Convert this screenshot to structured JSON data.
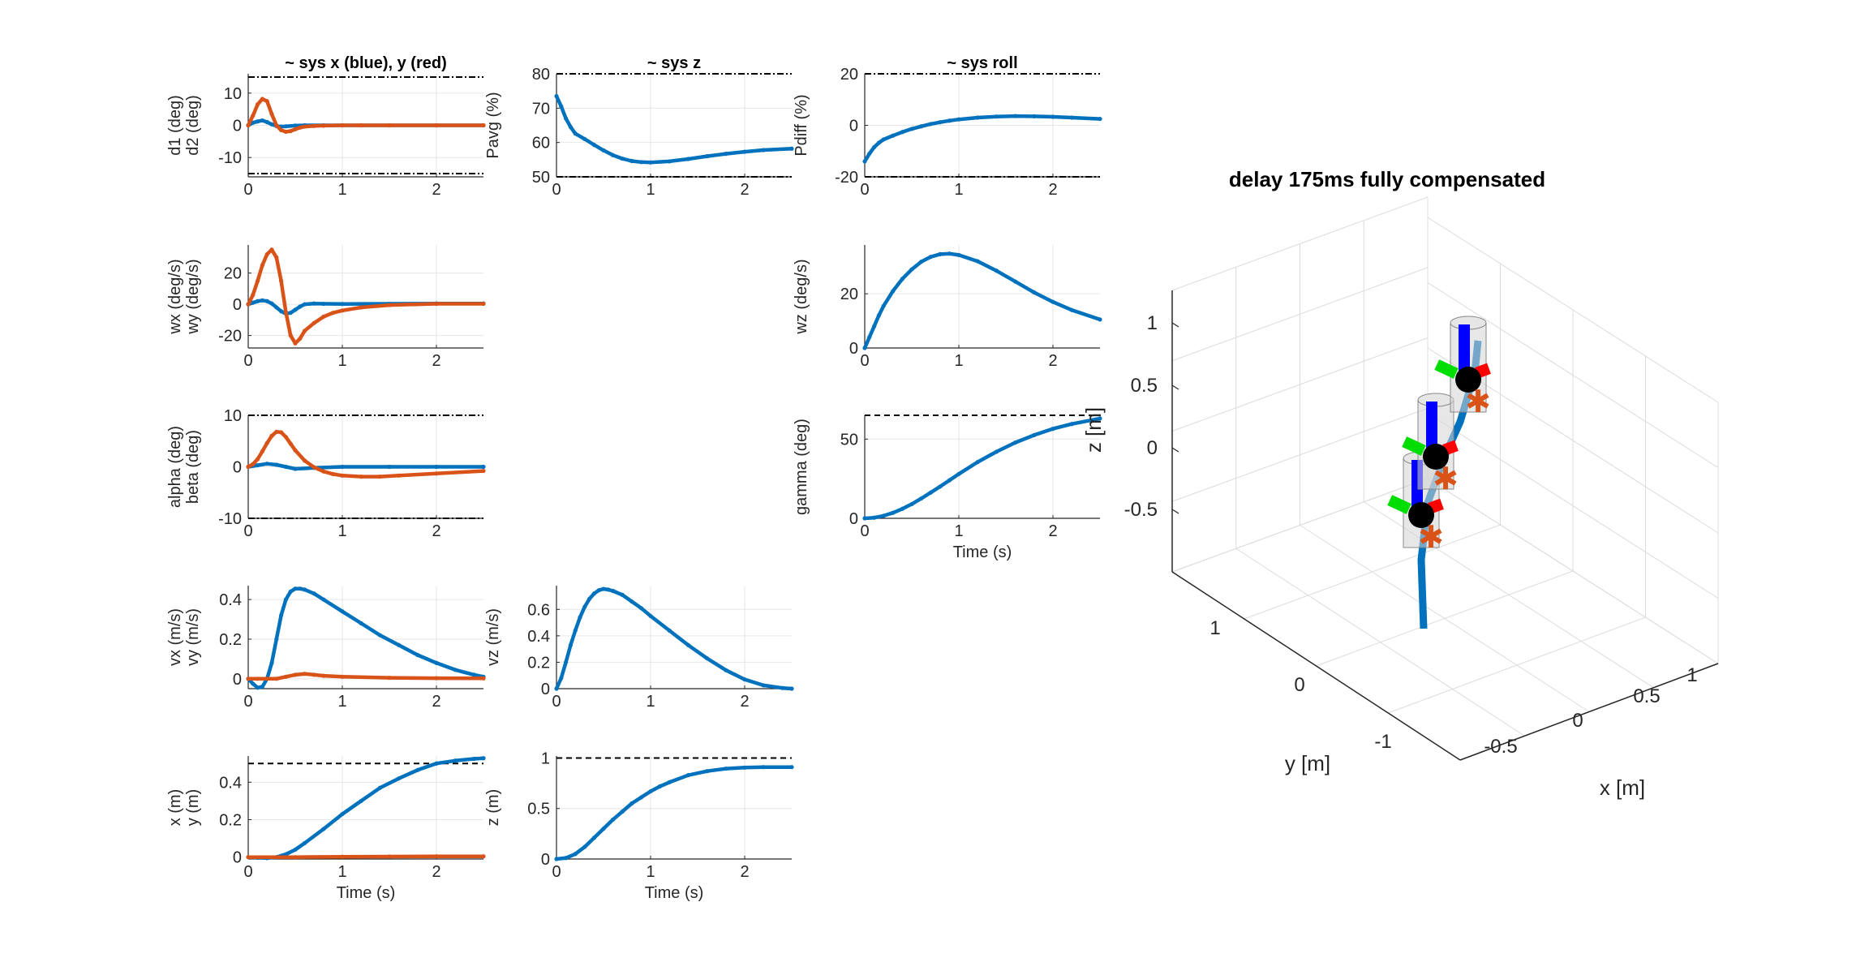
{
  "figure": {
    "title": "delay 175ms fully compensated"
  },
  "colors": {
    "blue": "#0072BD",
    "red": "#D95319",
    "axis": "#262626",
    "grid": "#e6e6e6",
    "limit": "#000000"
  },
  "chart_data": [
    {
      "id": "sys-xy-angles",
      "type": "line",
      "title": "~ sys x (blue), y (red)",
      "xlabel": "",
      "ylabel": [
        "d1 (deg)",
        "d2 (deg)"
      ],
      "xlim": [
        0,
        2.5
      ],
      "ylim": [
        -16,
        16
      ],
      "xticks": [
        "0",
        "1",
        "2"
      ],
      "yticks": [
        -10,
        0,
        10
      ],
      "limits": [
        15,
        -15
      ],
      "limit_style": "dashdot",
      "grid": true,
      "series": [
        {
          "color": "blue",
          "x": [
            0,
            0.05,
            0.1,
            0.15,
            0.2,
            0.25,
            0.3,
            0.35,
            0.4,
            0.5,
            0.6,
            0.8,
            1,
            1.5,
            2,
            2.5
          ],
          "y": [
            0,
            0.8,
            1.2,
            1.5,
            1.0,
            0.3,
            -0.2,
            -0.4,
            -0.3,
            -0.1,
            0,
            0,
            0,
            0,
            0,
            0
          ]
        },
        {
          "color": "red",
          "x": [
            0,
            0.05,
            0.1,
            0.15,
            0.2,
            0.25,
            0.3,
            0.35,
            0.4,
            0.45,
            0.5,
            0.55,
            0.6,
            0.7,
            0.8,
            1,
            1.2,
            1.5,
            2,
            2.5
          ],
          "y": [
            0,
            3,
            6.5,
            8.2,
            7.5,
            3.5,
            0,
            -1.5,
            -2,
            -1.8,
            -1.2,
            -0.7,
            -0.4,
            -0.2,
            -0.1,
            0,
            0,
            0,
            0,
            0
          ]
        }
      ]
    },
    {
      "id": "sys-z-pavg",
      "type": "line",
      "title": "~ sys z",
      "xlabel": "",
      "ylabel": [
        "Pavg (%)"
      ],
      "xlim": [
        0,
        2.5
      ],
      "ylim": [
        50,
        80
      ],
      "xticks": [
        "0",
        "1",
        "2"
      ],
      "yticks": [
        50,
        60,
        70,
        80
      ],
      "limits": [
        80,
        50
      ],
      "limit_style": "dashdot",
      "grid": true,
      "series": [
        {
          "color": "blue",
          "x": [
            0,
            0.05,
            0.1,
            0.15,
            0.2,
            0.3,
            0.4,
            0.5,
            0.6,
            0.7,
            0.8,
            0.9,
            1,
            1.2,
            1.4,
            1.6,
            1.8,
            2,
            2.2,
            2.5
          ],
          "y": [
            73.5,
            70.5,
            67,
            64.5,
            62.6,
            61,
            59.3,
            57.7,
            56.3,
            55.3,
            54.6,
            54.3,
            54.2,
            54.5,
            55.2,
            56,
            56.7,
            57.3,
            57.8,
            58.2
          ]
        }
      ]
    },
    {
      "id": "sys-roll-pdiff",
      "type": "line",
      "title": "~ sys roll",
      "xlabel": "",
      "ylabel": [
        "Pdiff (%)"
      ],
      "xlim": [
        0,
        2.5
      ],
      "ylim": [
        -20,
        20
      ],
      "xticks": [
        "0",
        "1",
        "2"
      ],
      "yticks": [
        -20,
        0,
        20
      ],
      "limits": [
        20,
        -20
      ],
      "limit_style": "dashdot",
      "grid": true,
      "series": [
        {
          "color": "blue",
          "x": [
            0,
            0.05,
            0.1,
            0.15,
            0.2,
            0.3,
            0.4,
            0.5,
            0.6,
            0.7,
            0.8,
            0.9,
            1,
            1.2,
            1.4,
            1.6,
            1.8,
            2,
            2.2,
            2.5
          ],
          "y": [
            -14,
            -11,
            -8.5,
            -6.8,
            -5.5,
            -4,
            -2.6,
            -1.4,
            -0.4,
            0.5,
            1.2,
            1.8,
            2.3,
            3,
            3.4,
            3.6,
            3.5,
            3.3,
            3,
            2.5
          ]
        }
      ]
    },
    {
      "id": "sys-xy-rates",
      "type": "line",
      "title": "",
      "xlabel": "",
      "ylabel": [
        "wx (deg/s)",
        "wy (deg/s)"
      ],
      "xlim": [
        0,
        2.5
      ],
      "ylim": [
        -28,
        38
      ],
      "xticks": [
        "0",
        "1",
        "2"
      ],
      "yticks": [
        -20,
        0,
        20
      ],
      "limits": [],
      "limit_style": "none",
      "grid": true,
      "series": [
        {
          "color": "blue",
          "x": [
            0,
            0.05,
            0.1,
            0.15,
            0.2,
            0.25,
            0.3,
            0.35,
            0.4,
            0.45,
            0.5,
            0.55,
            0.6,
            0.7,
            0.8,
            1,
            1.5,
            2,
            2.5
          ],
          "y": [
            0,
            1,
            2,
            2.5,
            2,
            0.5,
            -2,
            -4.5,
            -6,
            -5.5,
            -3.5,
            -1.5,
            0,
            0.5,
            0.3,
            0.2,
            0.3,
            0.5,
            0.5
          ]
        },
        {
          "color": "red",
          "x": [
            0,
            0.05,
            0.1,
            0.15,
            0.2,
            0.25,
            0.3,
            0.35,
            0.4,
            0.45,
            0.5,
            0.55,
            0.6,
            0.7,
            0.8,
            0.9,
            1,
            1.2,
            1.5,
            2,
            2.5
          ],
          "y": [
            0,
            6,
            15,
            25,
            32,
            35,
            30,
            15,
            -5,
            -20,
            -25,
            -22,
            -17,
            -12,
            -8,
            -5.5,
            -4,
            -2,
            -0.5,
            0.3,
            0.3
          ]
        }
      ]
    },
    {
      "id": "sys-roll-wz",
      "type": "line",
      "title": "",
      "xlabel": "",
      "ylabel": [
        "wz (deg/s)"
      ],
      "xlim": [
        0,
        2.5
      ],
      "ylim": [
        0,
        38
      ],
      "xticks": [
        "0",
        "1",
        "2"
      ],
      "yticks": [
        0,
        20
      ],
      "limits": [],
      "limit_style": "none",
      "grid": true,
      "series": [
        {
          "color": "blue",
          "x": [
            0,
            0.05,
            0.1,
            0.15,
            0.2,
            0.3,
            0.4,
            0.5,
            0.6,
            0.7,
            0.8,
            0.9,
            1,
            1.2,
            1.4,
            1.6,
            1.8,
            2,
            2.2,
            2.5
          ],
          "y": [
            0,
            4,
            8,
            12,
            15.5,
            21,
            25.5,
            29,
            31.8,
            33.6,
            34.6,
            34.8,
            34.3,
            32,
            28.5,
            24.5,
            20.5,
            17,
            14,
            10.5
          ]
        }
      ]
    },
    {
      "id": "sys-xy-attitude",
      "type": "line",
      "title": "",
      "xlabel": "",
      "ylabel": [
        "alpha (deg)",
        "beta (deg)"
      ],
      "xlim": [
        0,
        2.5
      ],
      "ylim": [
        -10,
        10
      ],
      "xticks": [
        "0",
        "1",
        "2"
      ],
      "yticks": [
        -10,
        0,
        10
      ],
      "limits": [
        10,
        -10
      ],
      "limit_style": "dashdot",
      "grid": true,
      "series": [
        {
          "color": "blue",
          "x": [
            0,
            0.1,
            0.2,
            0.3,
            0.4,
            0.5,
            0.7,
            1,
            1.5,
            2,
            2.5
          ],
          "y": [
            0,
            0.3,
            0.6,
            0.4,
            0,
            -0.4,
            -0.2,
            0,
            0,
            0,
            0
          ]
        },
        {
          "color": "red",
          "x": [
            0,
            0.05,
            0.1,
            0.15,
            0.2,
            0.25,
            0.3,
            0.35,
            0.4,
            0.45,
            0.5,
            0.6,
            0.7,
            0.8,
            0.9,
            1,
            1.2,
            1.4,
            1.6,
            2,
            2.5
          ],
          "y": [
            0,
            0.5,
            1.5,
            3,
            4.6,
            6,
            6.8,
            6.7,
            5.8,
            4.5,
            3.2,
            1.2,
            -0.1,
            -0.9,
            -1.4,
            -1.7,
            -1.9,
            -1.9,
            -1.7,
            -1.3,
            -0.8
          ]
        }
      ]
    },
    {
      "id": "sys-roll-gamma",
      "type": "line",
      "title": "",
      "xlabel": "Time (s)",
      "ylabel": [
        "gamma (deg)"
      ],
      "xlim": [
        0,
        2.5
      ],
      "ylim": [
        0,
        65
      ],
      "xticks": [
        "0",
        "1",
        "2"
      ],
      "yticks": [
        0,
        50
      ],
      "limits": [
        65
      ],
      "limit_style": "dashed",
      "grid": true,
      "series": [
        {
          "color": "blue",
          "x": [
            0,
            0.1,
            0.2,
            0.3,
            0.4,
            0.5,
            0.6,
            0.7,
            0.8,
            0.9,
            1,
            1.2,
            1.4,
            1.6,
            1.8,
            2,
            2.2,
            2.5
          ],
          "y": [
            0,
            0.4,
            1.6,
            3.5,
            6,
            9,
            12.5,
            16.2,
            20,
            24,
            28,
            35.5,
            42,
            47.8,
            52.5,
            56.5,
            59.5,
            63
          ]
        }
      ]
    },
    {
      "id": "sys-xy-velocity",
      "type": "line",
      "title": "",
      "xlabel": "",
      "ylabel": [
        "vx (m/s)",
        "vy (m/s)"
      ],
      "xlim": [
        0,
        2.5
      ],
      "ylim": [
        -0.05,
        0.47
      ],
      "xticks": [
        "0",
        "1",
        "2"
      ],
      "yticks": [
        0,
        0.2,
        0.4
      ],
      "limits": [],
      "limit_style": "none",
      "grid": true,
      "series": [
        {
          "color": "blue",
          "x": [
            0,
            0.05,
            0.1,
            0.15,
            0.2,
            0.25,
            0.3,
            0.35,
            0.4,
            0.45,
            0.5,
            0.55,
            0.6,
            0.7,
            0.8,
            1,
            1.2,
            1.4,
            1.6,
            1.8,
            2,
            2.2,
            2.4,
            2.5
          ],
          "y": [
            0,
            -0.025,
            -0.045,
            -0.04,
            0,
            0.08,
            0.2,
            0.32,
            0.4,
            0.44,
            0.455,
            0.455,
            0.45,
            0.43,
            0.4,
            0.34,
            0.28,
            0.22,
            0.17,
            0.12,
            0.08,
            0.045,
            0.02,
            0.01
          ]
        },
        {
          "color": "red",
          "x": [
            0,
            0.1,
            0.2,
            0.3,
            0.4,
            0.5,
            0.6,
            0.7,
            0.8,
            1,
            1.5,
            2,
            2.5
          ],
          "y": [
            0,
            0,
            0,
            0,
            0.01,
            0.02,
            0.025,
            0.02,
            0.015,
            0.01,
            0.005,
            0.003,
            0.002
          ]
        }
      ]
    },
    {
      "id": "sys-z-velocity",
      "type": "line",
      "title": "",
      "xlabel": "",
      "ylabel": [
        "vz (m/s)"
      ],
      "xlim": [
        0,
        2.5
      ],
      "ylim": [
        0,
        0.78
      ],
      "xticks": [
        "0",
        "1",
        "2"
      ],
      "yticks": [
        0,
        0.2,
        0.4,
        0.6
      ],
      "limits": [],
      "limit_style": "none",
      "grid": true,
      "series": [
        {
          "color": "blue",
          "x": [
            0,
            0.05,
            0.1,
            0.15,
            0.2,
            0.25,
            0.3,
            0.35,
            0.4,
            0.45,
            0.5,
            0.55,
            0.6,
            0.7,
            0.8,
            0.9,
            1,
            1.2,
            1.4,
            1.6,
            1.8,
            2,
            2.2,
            2.4,
            2.5
          ],
          "y": [
            0,
            0.08,
            0.2,
            0.33,
            0.44,
            0.54,
            0.62,
            0.68,
            0.72,
            0.745,
            0.755,
            0.75,
            0.74,
            0.71,
            0.66,
            0.61,
            0.55,
            0.44,
            0.33,
            0.23,
            0.14,
            0.07,
            0.025,
            0.005,
            0
          ]
        }
      ]
    },
    {
      "id": "sys-xy-position",
      "type": "line",
      "title": "",
      "xlabel": "Time (s)",
      "ylabel": [
        "x (m)",
        "y (m)"
      ],
      "xlim": [
        0,
        2.5
      ],
      "ylim": [
        -0.01,
        0.54
      ],
      "xticks": [
        "0",
        "1",
        "2"
      ],
      "yticks": [
        0,
        0.2,
        0.4
      ],
      "limits": [
        0.5,
        0
      ],
      "limit_style": "dashed",
      "grid": true,
      "series": [
        {
          "color": "blue",
          "x": [
            0,
            0.1,
            0.2,
            0.3,
            0.4,
            0.5,
            0.6,
            0.8,
            1,
            1.2,
            1.4,
            1.6,
            1.8,
            2,
            2.2,
            2.4,
            2.5
          ],
          "y": [
            0,
            -0.003,
            -0.005,
            0,
            0.015,
            0.04,
            0.075,
            0.15,
            0.23,
            0.3,
            0.37,
            0.42,
            0.465,
            0.5,
            0.515,
            0.525,
            0.528
          ]
        },
        {
          "color": "red",
          "x": [
            0,
            0.5,
            1,
            1.5,
            2,
            2.5
          ],
          "y": [
            0,
            0,
            0.002,
            0.003,
            0.004,
            0.004
          ]
        }
      ]
    },
    {
      "id": "sys-z-position",
      "type": "line",
      "title": "",
      "xlabel": "Time (s)",
      "ylabel": [
        "z (m)"
      ],
      "xlim": [
        0,
        2.5
      ],
      "ylim": [
        0,
        1.02
      ],
      "xticks": [
        "0",
        "1",
        "2"
      ],
      "yticks": [
        0,
        0.5,
        1
      ],
      "limits": [
        1
      ],
      "limit_style": "dashed",
      "grid": true,
      "series": [
        {
          "color": "blue",
          "x": [
            0,
            0.1,
            0.2,
            0.3,
            0.4,
            0.5,
            0.6,
            0.7,
            0.8,
            0.9,
            1,
            1.1,
            1.2,
            1.4,
            1.6,
            1.8,
            2,
            2.2,
            2.5
          ],
          "y": [
            0,
            0.01,
            0.05,
            0.12,
            0.21,
            0.3,
            0.39,
            0.47,
            0.55,
            0.61,
            0.67,
            0.72,
            0.76,
            0.83,
            0.87,
            0.895,
            0.905,
            0.91,
            0.91
          ]
        }
      ]
    },
    {
      "id": "scene-3d",
      "type": "scatter",
      "title": "delay 175ms fully compensated",
      "xlabel": "x [m]",
      "ylabel": "y [m]",
      "zlabel": "z [m]",
      "xlim": [
        -0.75,
        1.25
      ],
      "ylim": [
        -1.5,
        1.5
      ],
      "zlim": [
        -1,
        1.2
      ],
      "xticks": [
        "-0.5",
        "0",
        "0.5",
        "1"
      ],
      "yticks": [
        "-1",
        "0",
        "1"
      ],
      "zticks": [
        "-0.5",
        "0",
        "0.5",
        "1"
      ],
      "grid": true,
      "vehicle_poses": [
        {
          "x": 0.0,
          "y": 0.0,
          "z": -0.55
        },
        {
          "x": 0.3,
          "y": 0.0,
          "z": -0.05
        },
        {
          "x": 0.5,
          "y": 0.0,
          "z": 0.5
        }
      ],
      "trajectory": {
        "color": "blue",
        "description": "path"
      }
    }
  ]
}
